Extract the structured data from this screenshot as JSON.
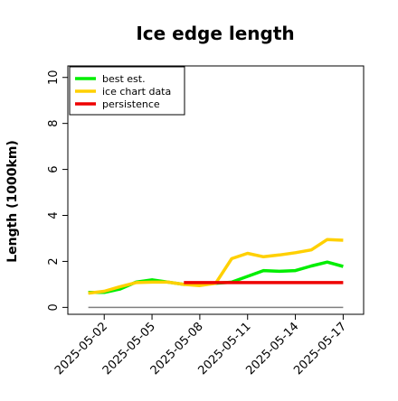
{
  "chart_data": {
    "type": "line",
    "title": "Ice edge length",
    "xlabel": "",
    "ylabel": "Length (1000km)",
    "x_ticks": [
      "2025-05-02",
      "2025-05-05",
      "2025-05-08",
      "2025-05-11",
      "2025-05-14",
      "2025-05-17"
    ],
    "x_range": [
      "2025-04-30",
      "2025-05-18"
    ],
    "y_ticks": [
      "0",
      "2",
      "4",
      "6",
      "8",
      "10"
    ],
    "ylim": [
      -0.3,
      10.5
    ],
    "grid": false,
    "legend_position": "top-left",
    "baseline": {
      "y": 0,
      "x_from": "2025-05-01",
      "x_to": "2025-05-17",
      "color": "#808080"
    },
    "series": [
      {
        "name": "best est.",
        "color": "#00ee00",
        "points": [
          [
            "2025-05-01",
            0.65
          ],
          [
            "2025-05-02",
            0.65
          ],
          [
            "2025-05-03",
            0.8
          ],
          [
            "2025-05-04",
            1.1
          ],
          [
            "2025-05-05",
            1.2
          ],
          [
            "2025-05-06",
            1.1
          ],
          [
            "2025-05-07",
            1.0
          ],
          [
            "2025-05-08",
            1.05
          ],
          [
            "2025-05-09",
            1.05
          ],
          [
            "2025-05-10",
            1.1
          ],
          [
            "2025-05-11",
            1.35
          ],
          [
            "2025-05-12",
            1.6
          ],
          [
            "2025-05-13",
            1.57
          ],
          [
            "2025-05-14",
            1.6
          ],
          [
            "2025-05-15",
            1.8
          ],
          [
            "2025-05-16",
            1.97
          ],
          [
            "2025-05-17",
            1.78
          ]
        ]
      },
      {
        "name": "ice chart data",
        "color": "#ffd000",
        "points": [
          [
            "2025-05-01",
            0.62
          ],
          [
            "2025-05-02",
            0.7
          ],
          [
            "2025-05-03",
            0.9
          ],
          [
            "2025-05-04",
            1.08
          ],
          [
            "2025-05-05",
            1.1
          ],
          [
            "2025-05-06",
            1.1
          ],
          [
            "2025-05-07",
            1.0
          ],
          [
            "2025-05-08",
            0.95
          ],
          [
            "2025-05-09",
            1.05
          ],
          [
            "2025-05-10",
            2.12
          ],
          [
            "2025-05-11",
            2.35
          ],
          [
            "2025-05-12",
            2.2
          ],
          [
            "2025-05-13",
            2.28
          ],
          [
            "2025-05-14",
            2.38
          ],
          [
            "2025-05-15",
            2.5
          ],
          [
            "2025-05-16",
            2.95
          ],
          [
            "2025-05-17",
            2.92
          ]
        ]
      },
      {
        "name": "persistence",
        "color": "#ee0000",
        "points": [
          [
            "2025-05-07",
            1.08
          ],
          [
            "2025-05-08",
            1.08
          ],
          [
            "2025-05-09",
            1.08
          ],
          [
            "2025-05-10",
            1.08
          ],
          [
            "2025-05-11",
            1.08
          ],
          [
            "2025-05-12",
            1.08
          ],
          [
            "2025-05-13",
            1.08
          ],
          [
            "2025-05-14",
            1.08
          ],
          [
            "2025-05-15",
            1.08
          ],
          [
            "2025-05-16",
            1.08
          ],
          [
            "2025-05-17",
            1.08
          ]
        ]
      }
    ]
  }
}
